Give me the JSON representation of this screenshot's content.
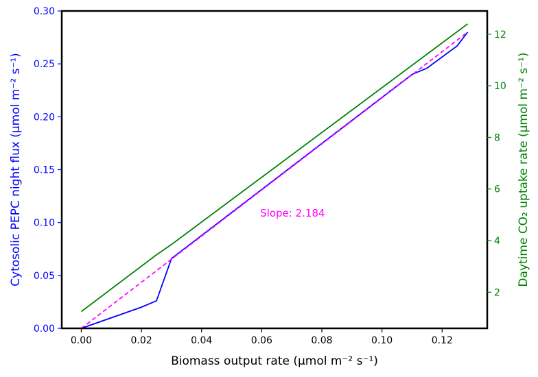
{
  "chart_data": {
    "type": "line",
    "xlabel": "Biomass output rate (µmol m⁻² s⁻¹)",
    "ylabel_left": "Cytosolic PEPC night flux (µmol m⁻² s⁻¹)",
    "ylabel_right": "Daytime CO₂ uptake rate (µmol m⁻² s⁻¹)",
    "xlim": [
      -0.0065,
      0.135
    ],
    "ylim_left": [
      0,
      0.3
    ],
    "ylim_right": [
      0.6,
      12.9
    ],
    "xticks": [
      "0.00",
      "0.02",
      "0.04",
      "0.06",
      "0.08",
      "0.10",
      "0.12"
    ],
    "xtick_values": [
      0,
      0.02,
      0.04,
      0.06,
      0.08,
      0.1,
      0.12
    ],
    "yticks_left": [
      "0.00",
      "0.05",
      "0.10",
      "0.15",
      "0.20",
      "0.25",
      "0.30"
    ],
    "ytick_values_left": [
      0,
      0.05,
      0.1,
      0.15,
      0.2,
      0.25,
      0.3
    ],
    "yticks_right": [
      "2",
      "4",
      "6",
      "8",
      "10",
      "12"
    ],
    "ytick_values_right": [
      2,
      4,
      6,
      8,
      10,
      12
    ],
    "grid": false,
    "legend": "none",
    "annotation": {
      "text": "Slope: 2.184",
      "x": 0.0595,
      "y": 0.109,
      "color": "#ff00ff"
    },
    "series": [
      {
        "axis": "left",
        "color": "#0000ff",
        "dash": "solid",
        "x": [
          0,
          0.02,
          0.025,
          0.03,
          0.11,
          0.115,
          0.125,
          0.1285
        ],
        "y": [
          0,
          0.02,
          0.026,
          0.066,
          0.24,
          0.246,
          0.267,
          0.28
        ]
      },
      {
        "axis": "left",
        "color": "#ff00ff",
        "dash": "dashed",
        "x": [
          0,
          0.1285
        ],
        "y": [
          0,
          0.28
        ]
      },
      {
        "axis": "right",
        "color": "#008000",
        "dash": "solid",
        "x": [
          0,
          0.025,
          0.03,
          0.1285
        ],
        "y": [
          1.25,
          3.45,
          3.85,
          12.4
        ]
      }
    ]
  },
  "colors": {
    "left_axis": "#0000ff",
    "right_axis": "#008000",
    "frame": "#000000"
  }
}
